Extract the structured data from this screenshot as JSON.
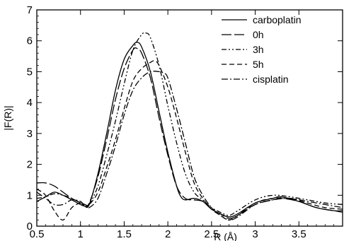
{
  "chart_data": {
    "type": "line",
    "xlabel": "R (Å)",
    "ylabel": "|F(R)|",
    "xlim": [
      0.5,
      4.0
    ],
    "ylim": [
      0,
      7
    ],
    "x_ticks": [
      "0.5",
      "1",
      "1.5",
      "2",
      "2.5",
      "3",
      "3.5"
    ],
    "y_ticks": [
      "0",
      "1",
      "2",
      "3",
      "4",
      "5",
      "6",
      "7"
    ],
    "legend_position": "top-right",
    "series": [
      {
        "name": "carboplatin",
        "dash": "none",
        "x": [
          0.5,
          0.6,
          0.7,
          0.8,
          0.9,
          1.0,
          1.05,
          1.1,
          1.2,
          1.3,
          1.4,
          1.5,
          1.6,
          1.65,
          1.7,
          1.8,
          1.9,
          2.0,
          2.1,
          2.15,
          2.2,
          2.3,
          2.4,
          2.5,
          2.6,
          2.7,
          2.8,
          3.0,
          3.2,
          3.3,
          3.5,
          3.7,
          3.9,
          4.0
        ],
        "y": [
          0.8,
          0.95,
          1.1,
          1.0,
          0.85,
          0.7,
          0.65,
          0.7,
          1.7,
          3.0,
          4.4,
          5.4,
          5.85,
          5.95,
          5.8,
          5.0,
          3.7,
          2.4,
          1.3,
          0.95,
          0.85,
          0.9,
          0.8,
          0.55,
          0.4,
          0.3,
          0.4,
          0.75,
          0.9,
          0.95,
          0.8,
          0.6,
          0.5,
          0.5
        ]
      },
      {
        "name": "0h",
        "dash": "long",
        "x": [
          0.5,
          0.6,
          0.7,
          0.8,
          0.9,
          1.0,
          1.05,
          1.1,
          1.2,
          1.3,
          1.4,
          1.5,
          1.6,
          1.65,
          1.7,
          1.8,
          1.9,
          2.0,
          2.1,
          2.2,
          2.3,
          2.4,
          2.5,
          2.6,
          2.7,
          2.8,
          3.0,
          3.2,
          3.3,
          3.5,
          3.7,
          3.9,
          4.0
        ],
        "y": [
          1.4,
          1.4,
          1.3,
          1.1,
          0.9,
          0.75,
          0.65,
          0.75,
          1.6,
          2.8,
          4.1,
          5.1,
          5.7,
          5.75,
          5.6,
          4.8,
          3.5,
          2.3,
          1.3,
          0.9,
          0.85,
          0.8,
          0.55,
          0.4,
          0.25,
          0.35,
          0.7,
          0.85,
          0.9,
          0.8,
          0.6,
          0.5,
          0.45
        ]
      },
      {
        "name": "3h",
        "dash": "dash-dot-dot",
        "x": [
          0.5,
          0.6,
          0.7,
          0.8,
          0.9,
          1.0,
          1.05,
          1.1,
          1.2,
          1.3,
          1.4,
          1.5,
          1.6,
          1.7,
          1.75,
          1.8,
          1.9,
          2.0,
          2.1,
          2.2,
          2.3,
          2.4,
          2.5,
          2.6,
          2.7,
          2.8,
          3.0,
          3.2,
          3.4,
          3.6,
          3.8,
          4.0
        ],
        "y": [
          0.9,
          0.95,
          1.05,
          1.0,
          0.9,
          0.75,
          0.65,
          0.7,
          1.3,
          2.3,
          3.4,
          4.6,
          5.7,
          6.2,
          6.25,
          6.1,
          5.2,
          3.9,
          2.7,
          1.7,
          1.1,
          0.85,
          0.6,
          0.45,
          0.35,
          0.5,
          0.85,
          1.0,
          0.95,
          0.85,
          0.75,
          0.7
        ]
      },
      {
        "name": "5h",
        "dash": "dash",
        "x": [
          0.5,
          0.6,
          0.7,
          0.8,
          0.9,
          1.0,
          1.05,
          1.1,
          1.2,
          1.3,
          1.4,
          1.5,
          1.6,
          1.7,
          1.8,
          1.85,
          1.9,
          2.0,
          2.1,
          2.2,
          2.3,
          2.4,
          2.5,
          2.6,
          2.7,
          2.8,
          3.0,
          3.2,
          3.4,
          3.6,
          3.8,
          4.0
        ],
        "y": [
          1.2,
          1.0,
          0.5,
          0.2,
          0.6,
          0.75,
          0.7,
          0.7,
          1.1,
          1.9,
          2.8,
          3.8,
          4.7,
          5.1,
          5.3,
          5.35,
          5.2,
          4.5,
          3.5,
          2.4,
          1.4,
          0.9,
          0.55,
          0.35,
          0.2,
          0.35,
          0.75,
          0.9,
          0.9,
          0.75,
          0.6,
          0.55
        ]
      },
      {
        "name": "cisplatin",
        "dash": "dash-dot",
        "x": [
          0.5,
          0.6,
          0.7,
          0.8,
          0.9,
          1.0,
          1.05,
          1.1,
          1.2,
          1.3,
          1.4,
          1.5,
          1.6,
          1.7,
          1.8,
          1.9,
          1.95,
          2.0,
          2.1,
          2.2,
          2.3,
          2.4,
          2.5,
          2.6,
          2.7,
          2.8,
          3.0,
          3.2,
          3.4,
          3.6,
          3.8,
          4.0
        ],
        "y": [
          1.1,
          0.9,
          0.7,
          0.7,
          0.85,
          0.8,
          0.65,
          0.6,
          0.9,
          1.7,
          2.6,
          3.6,
          4.4,
          4.8,
          5.0,
          5.0,
          4.95,
          4.8,
          3.8,
          2.7,
          1.6,
          1.0,
          0.6,
          0.35,
          0.2,
          0.3,
          0.7,
          0.85,
          0.9,
          0.8,
          0.7,
          0.6
        ]
      }
    ]
  }
}
